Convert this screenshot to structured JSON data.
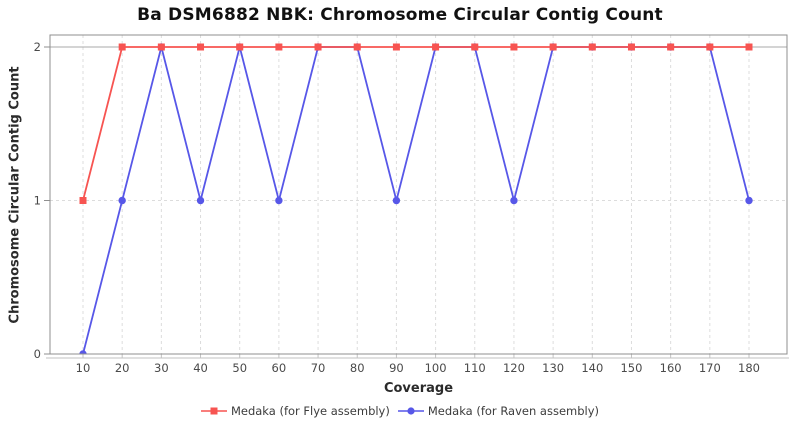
{
  "chart_data": {
    "type": "line",
    "title": "Ba DSM6882 NBK: Chromosome Circular Contig Count",
    "xlabel": "Coverage",
    "ylabel": "Chromosome Circular Contig Count",
    "x": [
      10,
      20,
      30,
      40,
      50,
      60,
      70,
      80,
      90,
      100,
      110,
      120,
      130,
      140,
      150,
      160,
      170,
      180
    ],
    "series": [
      {
        "name": "Medaka (for Flye assembly)",
        "marker": "square",
        "color": "#f75451",
        "values": [
          1,
          2,
          2,
          2,
          2,
          2,
          2,
          2,
          2,
          2,
          2,
          2,
          2,
          2,
          2,
          2,
          2,
          2
        ]
      },
      {
        "name": "Medaka (for Raven assembly)",
        "marker": "circle",
        "color": "#5757e8",
        "values": [
          0,
          1,
          2,
          1,
          2,
          1,
          2,
          2,
          1,
          2,
          2,
          1,
          2,
          2,
          2,
          2,
          2,
          1
        ]
      }
    ],
    "yticks": [
      0,
      1,
      2
    ],
    "ylim": [
      0,
      2
    ],
    "grid": "dashed",
    "legend_position": "bottom"
  }
}
